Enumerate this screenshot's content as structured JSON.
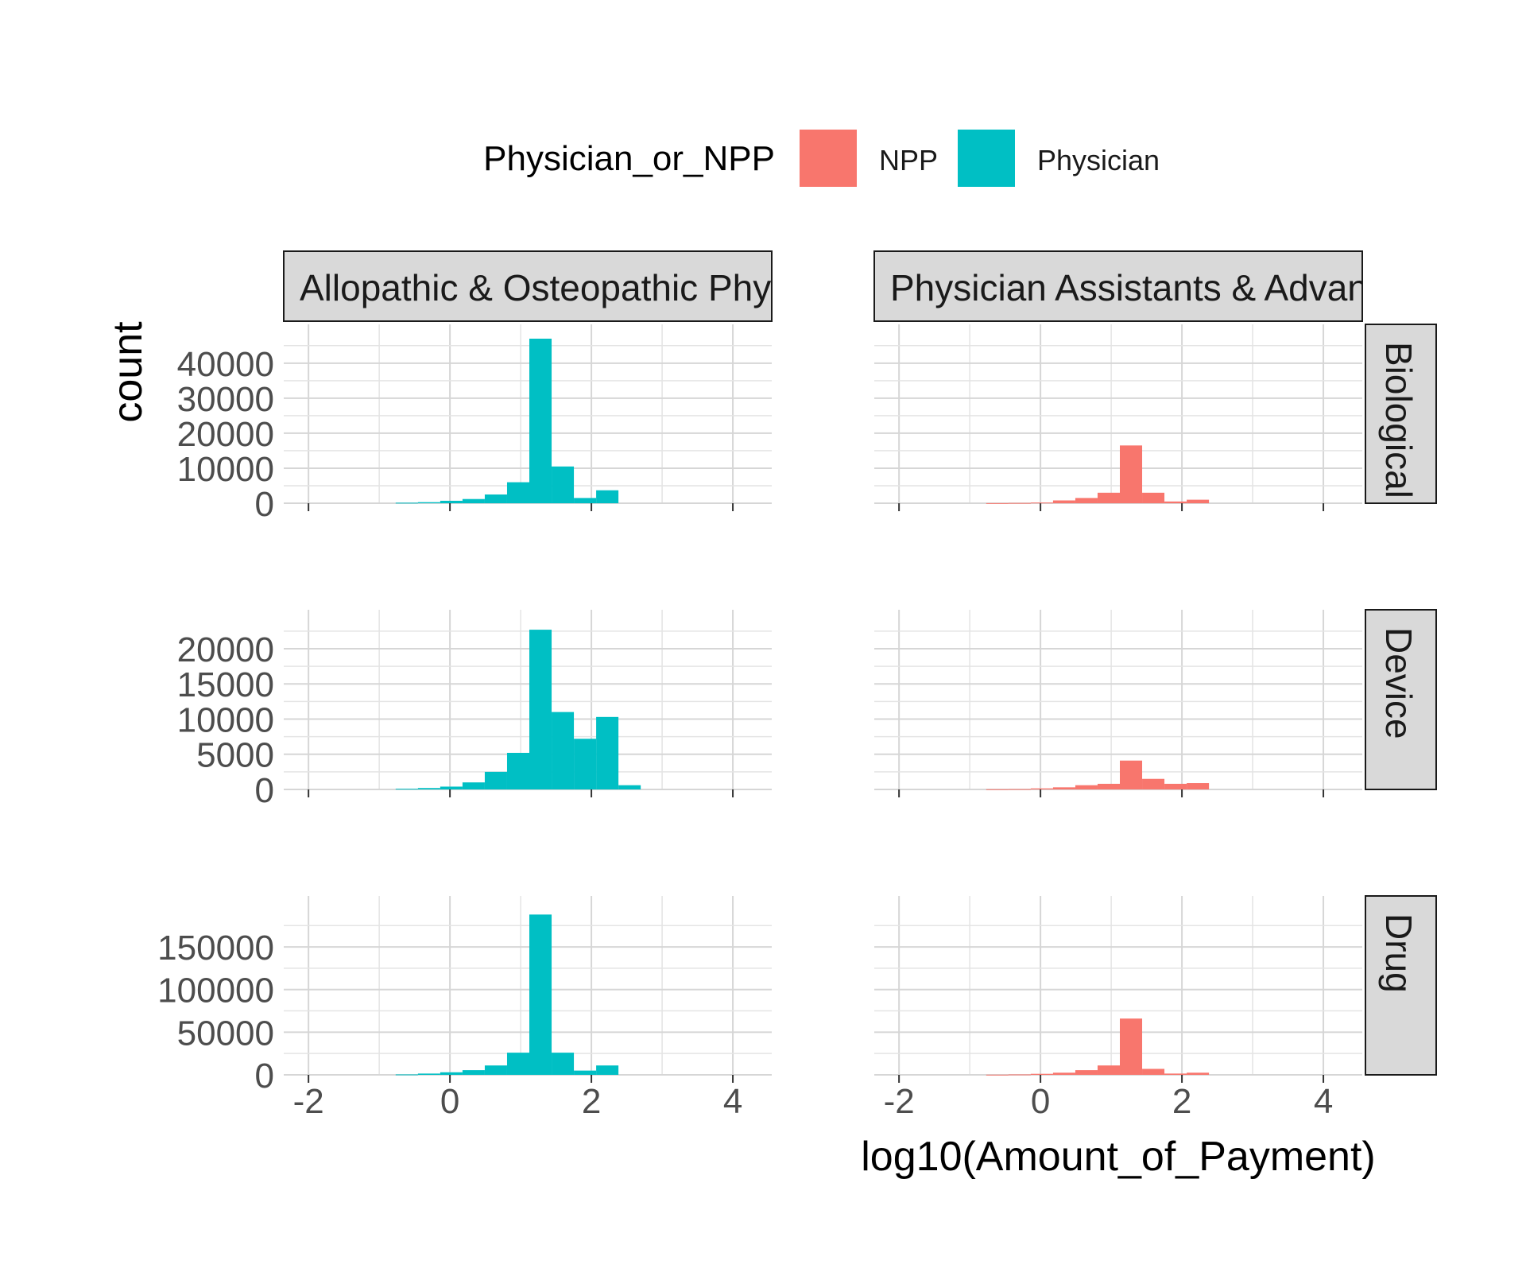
{
  "chart_data": {
    "type": "bar",
    "subtype": "faceted histogram",
    "xlabel": "log10(Amount_of_Payment)",
    "ylabel": "count",
    "grid": true,
    "legend": {
      "title": "Physician_or_NPP",
      "position": "top",
      "entries": [
        {
          "name": "NPP",
          "color": "#F8766D"
        },
        {
          "name": "Physician",
          "color": "#00BFC4"
        }
      ]
    },
    "x_range": [
      -2.35,
      4.55
    ],
    "x_ticks": [
      -2,
      0,
      2,
      4
    ],
    "column_strips": [
      "Allopathic & Osteopathic Phys",
      "Physician Assistants & Advanc"
    ],
    "row_strips": [
      "Biological",
      "Device",
      "Drug"
    ],
    "bin_width": 0.315,
    "bin_centers": [
      -0.61,
      -0.295,
      0.02,
      0.335,
      0.65,
      0.965,
      1.28,
      1.595,
      1.91,
      2.225,
      2.54
    ],
    "rows": [
      {
        "name": "Biological",
        "y_ticks": [
          0,
          10000,
          20000,
          30000,
          40000
        ],
        "y_range": [
          0,
          47000
        ],
        "series": [
          {
            "name": "Physician",
            "column": 0,
            "values": [
              150,
              300,
              700,
              1200,
              2500,
              6000,
              47000,
              10500,
              1500,
              3700,
              0
            ]
          },
          {
            "name": "NPP",
            "column": 1,
            "values": [
              30,
              80,
              200,
              800,
              1500,
              3000,
              16500,
              3000,
              500,
              1000,
              0
            ]
          }
        ]
      },
      {
        "name": "Device",
        "y_ticks": [
          0,
          5000,
          10000,
          15000,
          20000
        ],
        "y_range": [
          0,
          23500
        ],
        "series": [
          {
            "name": "Physician",
            "column": 0,
            "values": [
              100,
              200,
              400,
              1000,
              2500,
              5200,
              22700,
              11000,
              7200,
              10300,
              600
            ]
          },
          {
            "name": "NPP",
            "column": 1,
            "values": [
              30,
              50,
              150,
              300,
              600,
              800,
              4100,
              1500,
              800,
              900,
              0
            ]
          }
        ]
      },
      {
        "name": "Drug",
        "y_ticks": [
          0,
          50000,
          100000,
          150000
        ],
        "y_range": [
          0,
          193000
        ],
        "series": [
          {
            "name": "Physician",
            "column": 0,
            "values": [
              500,
              1500,
              3000,
              5500,
              11000,
              26000,
              188000,
              26000,
              5000,
              11000,
              0
            ]
          },
          {
            "name": "NPP",
            "column": 1,
            "values": [
              200,
              500,
              1200,
              2500,
              5500,
              11000,
              66000,
              7000,
              1500,
              2500,
              0
            ]
          }
        ]
      }
    ]
  }
}
